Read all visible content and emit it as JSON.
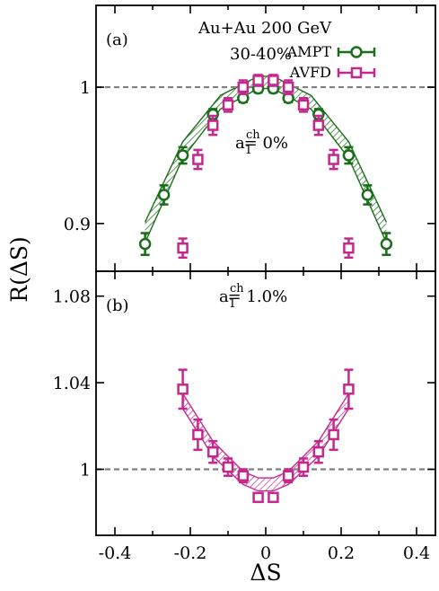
{
  "colors": {
    "ampt": "#1a6e1a",
    "avfd": "#c4288f",
    "reference_line": "#808080",
    "axes": "#000000"
  },
  "figure": {
    "xlabel": "ΔS",
    "ylabel": "R(ΔS)"
  },
  "chart_data": [
    {
      "type": "scatter",
      "panel_label": "(a)",
      "system_label": "Au+Au 200 GeV",
      "centrality_label": "30-40%",
      "a1_label": {
        "base": "a",
        "sub": "1",
        "sup": "ch",
        "tail": "= 0%"
      },
      "xlim": [
        -0.45,
        0.45
      ],
      "ylim": [
        0.865,
        1.06
      ],
      "yticks": [
        {
          "value": 0.9,
          "label": "0.9"
        },
        {
          "value": 1.0,
          "label": "1"
        }
      ],
      "reference_line": 1.0,
      "grid": false,
      "legend": {
        "placement": "top-right",
        "entries": [
          {
            "name": "AMPT",
            "marker": "circle",
            "color_key": "ampt"
          },
          {
            "name": "AVFD",
            "marker": "square",
            "color_key": "avfd"
          }
        ]
      },
      "series": [
        {
          "name": "AMPT",
          "marker": "circle",
          "color_key": "ampt",
          "points": [
            {
              "x": -0.32,
              "y": 0.885,
              "err": 0.008
            },
            {
              "x": -0.27,
              "y": 0.921,
              "err": 0.007
            },
            {
              "x": -0.22,
              "y": 0.95,
              "err": 0.006
            },
            {
              "x": -0.14,
              "y": 0.98,
              "err": 0.004
            },
            {
              "x": -0.06,
              "y": 0.992,
              "err": 0.003
            },
            {
              "x": -0.02,
              "y": 0.999,
              "err": 0.003
            },
            {
              "x": 0.02,
              "y": 0.999,
              "err": 0.003
            },
            {
              "x": 0.06,
              "y": 0.992,
              "err": 0.003
            },
            {
              "x": 0.14,
              "y": 0.98,
              "err": 0.004
            },
            {
              "x": 0.22,
              "y": 0.95,
              "err": 0.006
            },
            {
              "x": 0.27,
              "y": 0.921,
              "err": 0.007
            },
            {
              "x": 0.32,
              "y": 0.885,
              "err": 0.008
            }
          ],
          "fit_band": {
            "hatch": "diagonal",
            "upper": [
              [
                -0.32,
                0.901
              ],
              [
                -0.22,
                0.96
              ],
              [
                -0.12,
                0.994
              ],
              [
                -0.02,
                1.008
              ],
              [
                0.02,
                1.008
              ],
              [
                0.12,
                0.994
              ],
              [
                0.22,
                0.96
              ],
              [
                0.32,
                0.901
              ]
            ],
            "lower": [
              [
                -0.32,
                0.886
              ],
              [
                -0.22,
                0.948
              ],
              [
                -0.12,
                0.984
              ],
              [
                -0.02,
                0.999
              ],
              [
                0.02,
                0.999
              ],
              [
                0.12,
                0.984
              ],
              [
                0.22,
                0.948
              ],
              [
                0.32,
                0.886
              ]
            ]
          }
        },
        {
          "name": "AVFD",
          "marker": "square",
          "color_key": "avfd",
          "points": [
            {
              "x": -0.22,
              "y": 0.882,
              "err": 0.007
            },
            {
              "x": -0.18,
              "y": 0.947,
              "err": 0.007
            },
            {
              "x": -0.14,
              "y": 0.972,
              "err": 0.007
            },
            {
              "x": -0.1,
              "y": 0.987,
              "err": 0.005
            },
            {
              "x": -0.06,
              "y": 1.0,
              "err": 0.005
            },
            {
              "x": -0.02,
              "y": 1.005,
              "err": 0.004
            },
            {
              "x": 0.02,
              "y": 1.005,
              "err": 0.004
            },
            {
              "x": 0.06,
              "y": 1.0,
              "err": 0.005
            },
            {
              "x": 0.1,
              "y": 0.987,
              "err": 0.005
            },
            {
              "x": 0.14,
              "y": 0.972,
              "err": 0.007
            },
            {
              "x": 0.18,
              "y": 0.947,
              "err": 0.007
            },
            {
              "x": 0.22,
              "y": 0.882,
              "err": 0.007
            }
          ]
        }
      ]
    },
    {
      "type": "scatter",
      "panel_label": "(b)",
      "a1_label": {
        "base": "a",
        "sub": "1",
        "sup": "ch",
        "tail": "= 1.0%"
      },
      "xlim": [
        -0.45,
        0.45
      ],
      "ylim": [
        0.9695,
        1.0915
      ],
      "yticks": [
        {
          "value": 1.0,
          "label": "1"
        },
        {
          "value": 1.04,
          "label": "1.04"
        },
        {
          "value": 1.08,
          "label": "1.08"
        }
      ],
      "xticks": [
        {
          "value": -0.4,
          "label": "-0.4"
        },
        {
          "value": -0.2,
          "label": "-0.2"
        },
        {
          "value": 0,
          "label": "0"
        },
        {
          "value": 0.2,
          "label": "0.2"
        },
        {
          "value": 0.4,
          "label": "0.4"
        }
      ],
      "reference_line": 1.0,
      "grid": false,
      "series": [
        {
          "name": "AVFD",
          "marker": "square",
          "color_key": "avfd",
          "points": [
            {
              "x": -0.22,
              "y": 1.037,
              "err": 0.009
            },
            {
              "x": -0.18,
              "y": 1.016,
              "err": 0.007
            },
            {
              "x": -0.14,
              "y": 1.008,
              "err": 0.005
            },
            {
              "x": -0.1,
              "y": 1.001,
              "err": 0.004
            },
            {
              "x": -0.06,
              "y": 0.997,
              "err": 0.003
            },
            {
              "x": -0.02,
              "y": 0.987,
              "err": 0.001
            },
            {
              "x": 0.02,
              "y": 0.987,
              "err": 0.001
            },
            {
              "x": 0.06,
              "y": 0.997,
              "err": 0.003
            },
            {
              "x": 0.1,
              "y": 1.001,
              "err": 0.004
            },
            {
              "x": 0.14,
              "y": 1.008,
              "err": 0.005
            },
            {
              "x": 0.18,
              "y": 1.016,
              "err": 0.007
            },
            {
              "x": 0.22,
              "y": 1.037,
              "err": 0.009
            }
          ],
          "fit_band": {
            "hatch": "diagonal",
            "upper": [
              [
                -0.22,
                1.035
              ],
              [
                -0.14,
                1.013
              ],
              [
                -0.06,
                0.999
              ],
              [
                -0.02,
                0.996
              ],
              [
                0.02,
                0.996
              ],
              [
                0.06,
                0.999
              ],
              [
                0.14,
                1.013
              ],
              [
                0.22,
                1.035
              ]
            ],
            "lower": [
              [
                -0.22,
                1.028
              ],
              [
                -0.14,
                1.006
              ],
              [
                -0.06,
                0.993
              ],
              [
                -0.02,
                0.99
              ],
              [
                0.02,
                0.99
              ],
              [
                0.06,
                0.993
              ],
              [
                0.14,
                1.006
              ],
              [
                0.22,
                1.028
              ]
            ]
          }
        }
      ]
    }
  ]
}
